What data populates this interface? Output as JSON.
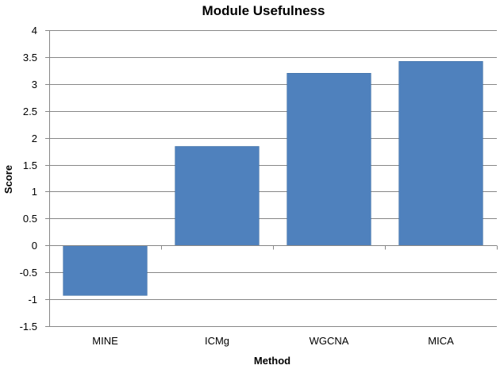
{
  "chart_data": {
    "type": "bar",
    "title": "Module Usefulness",
    "xlabel": "Method",
    "ylabel": "Score",
    "categories": [
      "MINE",
      "ICMg",
      "WGCNA",
      "MICA"
    ],
    "values": [
      -0.93,
      1.84,
      3.2,
      3.42
    ],
    "ylim": [
      -1.5,
      4
    ],
    "yticks": [
      -1.5,
      -1,
      -0.5,
      0,
      0.5,
      1,
      1.5,
      2,
      2.5,
      3,
      3.5,
      4
    ],
    "ytick_labels": [
      "-1.5",
      "-1",
      "-0.5",
      "0",
      "0.5",
      "1",
      "1.5",
      "2",
      "2.5",
      "3",
      "3.5",
      "4"
    ],
    "grid": true,
    "legend": "none",
    "bar_color": "#4F81BD",
    "bar_edge_color": "#3A6A9E",
    "grid_color": "#878787"
  }
}
